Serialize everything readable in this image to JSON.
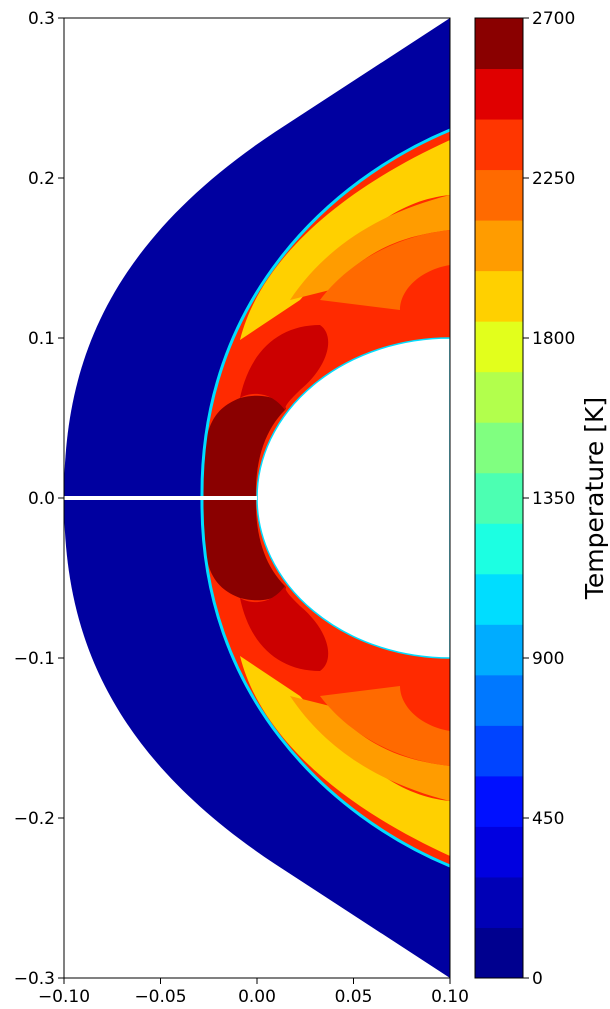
{
  "chart_data": {
    "type": "contourf",
    "title": "",
    "xlabel": "",
    "ylabel": "",
    "xlim": [
      -0.1,
      0.1
    ],
    "ylim": [
      -0.3,
      0.3
    ],
    "x_ticks": [
      -0.1,
      -0.05,
      0.0,
      0.05,
      0.1
    ],
    "x_tick_labels": [
      "−0.10",
      "−0.05",
      "0.00",
      "0.05",
      "0.10"
    ],
    "y_ticks": [
      -0.3,
      -0.2,
      -0.1,
      0.0,
      0.1,
      0.2,
      0.3
    ],
    "y_tick_labels": [
      "−0.3",
      "−0.2",
      "−0.1",
      "0.0",
      "0.1",
      "0.2",
      "0.3"
    ],
    "colorbar": {
      "label": "Temperature [K]",
      "min": 0,
      "max": 2700,
      "levels": 18,
      "ticks": [
        0,
        450,
        900,
        1350,
        1800,
        2250,
        2700
      ],
      "tick_labels": [
        "0",
        "450",
        "900",
        "1350",
        "1800",
        "2250",
        "2700"
      ],
      "colormap": "jet",
      "colors": [
        "#00008f",
        "#0000b6",
        "#0000e0",
        "#0010ff",
        "#0044ff",
        "#0078ff",
        "#00acff",
        "#00ddff",
        "#1cffe2",
        "#4cffb2",
        "#80ff80",
        "#b2ff4c",
        "#e2ff1c",
        "#ffd000",
        "#ff9c00",
        "#ff6a00",
        "#ff3600",
        "#e00000",
        "#8a0000"
      ]
    },
    "geometry": {
      "body_radius": 0.1,
      "body_center": [
        0.1,
        0.0
      ],
      "shock_standoff_x": -0.03,
      "freestream_T": 0,
      "max_T": 2700
    }
  }
}
